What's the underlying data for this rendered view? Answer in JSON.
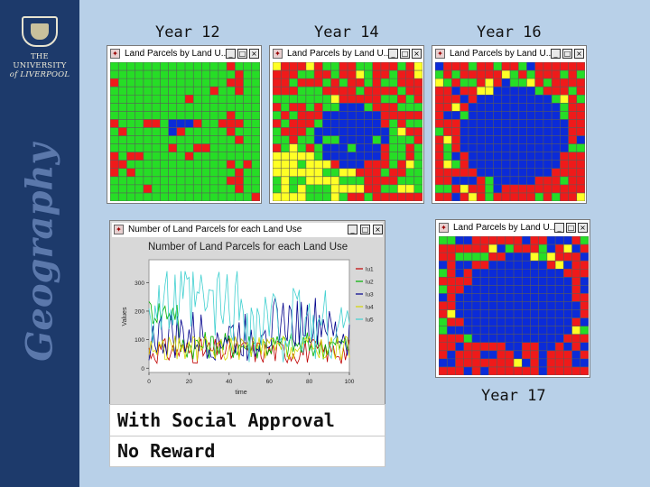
{
  "sidebar": {
    "univ_line1": "THE UNIVERSITY",
    "univ_line2": "of LIVERPOOL",
    "vertical_title": "Geography"
  },
  "grid_windows": [
    {
      "year": "Year 12",
      "title": "Land Parcels by Land U...",
      "grid_seed": 3
    },
    {
      "year": "Year 14",
      "title": "Land Parcels by Land U...",
      "grid_seed": 7
    },
    {
      "year": "Year 16",
      "title": "Land Parcels by Land U...",
      "grid_seed": 11
    },
    {
      "year": "Year 17",
      "title": "Land Parcels by Land U...",
      "grid_seed": 19
    }
  ],
  "window_buttons": {
    "minimize": "_",
    "maximize": "□",
    "close": "×"
  },
  "chart_window": {
    "title_bar": "Number of Land Parcels for each Land Use"
  },
  "chart_data": {
    "type": "line",
    "title": "Number of Land Parcels for each Land Use",
    "xlabel": "time",
    "ylabel": "Values",
    "xlim": [
      0,
      100
    ],
    "ylim": [
      -15,
      380
    ],
    "x_ticks": [
      "0",
      "20",
      "40",
      "60",
      "80",
      "100"
    ],
    "y_ticks": [
      "0",
      "100",
      "200",
      "300"
    ],
    "legend": {
      "position": "right",
      "entries": [
        "lu1",
        "lu2",
        "lu3",
        "lu4",
        "lu5"
      ]
    },
    "series": [
      {
        "name": "lu1",
        "color": "#c00000"
      },
      {
        "name": "lu2",
        "color": "#00b000"
      },
      {
        "name": "lu3",
        "color": "#00008b"
      },
      {
        "name": "lu4",
        "color": "#d6d600"
      },
      {
        "name": "lu5",
        "color": "#40d0d0"
      }
    ]
  },
  "captions": {
    "line1": "With Social Approval",
    "line2": "No Reward"
  },
  "colors": {
    "red": "#ef1a1a",
    "green": "#26dd26",
    "blue": "#0b2bd8",
    "yellow": "#ffff26",
    "gridline": "#5a5a5a"
  }
}
